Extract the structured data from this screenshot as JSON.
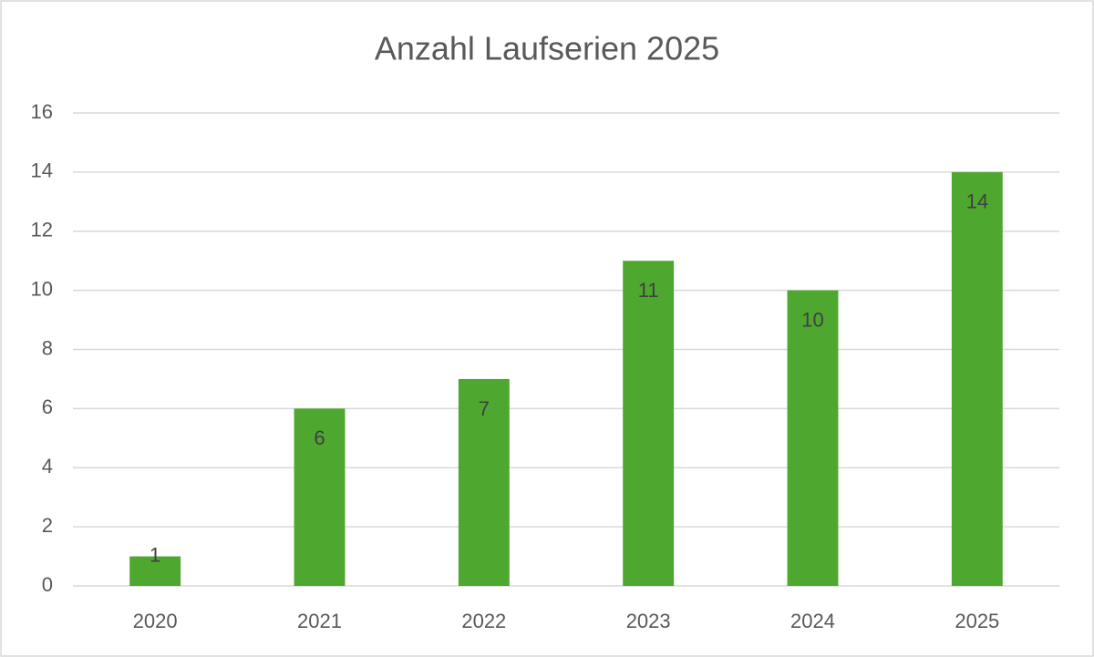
{
  "chart_data": {
    "type": "bar",
    "title": "Anzahl Laufserien 2025",
    "categories": [
      "2020",
      "2021",
      "2022",
      "2023",
      "2024",
      "2025"
    ],
    "values": [
      1,
      6,
      7,
      11,
      10,
      14
    ],
    "color": "#4ea72e",
    "ylim": [
      0,
      16
    ],
    "yticks": [
      0,
      2,
      4,
      6,
      8,
      10,
      12,
      14,
      16
    ],
    "grid": true
  }
}
